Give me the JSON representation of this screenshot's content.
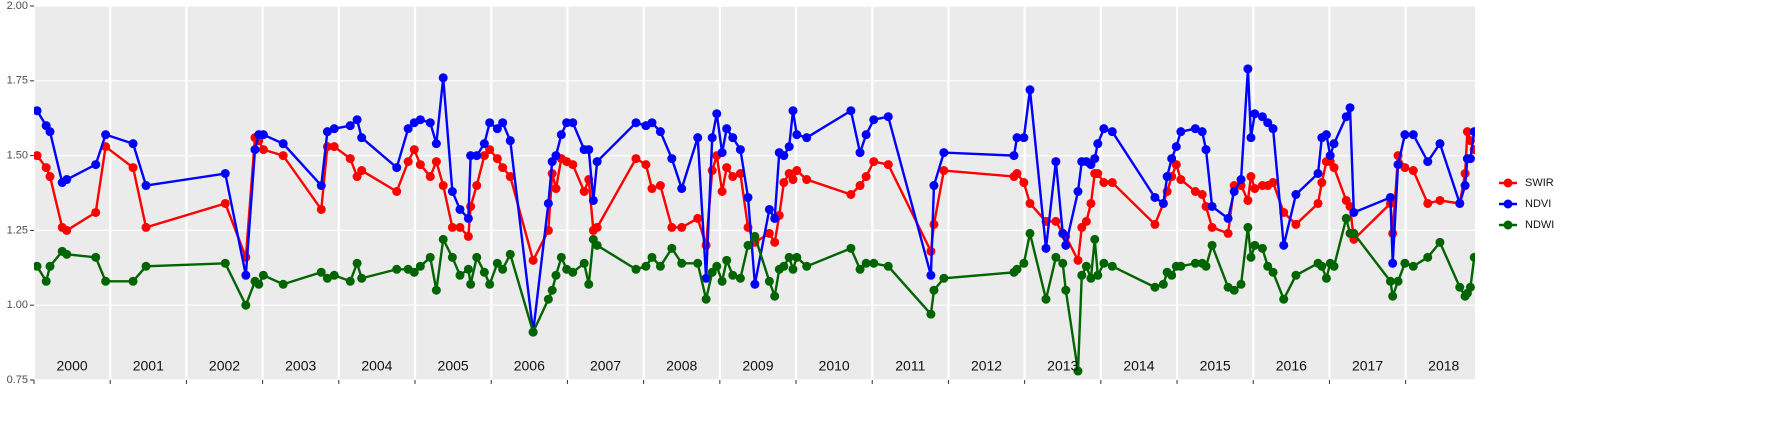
{
  "chart_data": {
    "type": "line",
    "x": [
      2000.04,
      2000.16,
      2000.21,
      2000.37,
      2000.43,
      2000.81,
      2000.94,
      2001.3,
      2001.47,
      2002.51,
      2002.78,
      2002.9,
      2002.95,
      2003.01,
      2003.27,
      2003.77,
      2003.85,
      2003.94,
      2004.15,
      2004.24,
      2004.3,
      2004.76,
      2004.91,
      2004.99,
      2005.07,
      2005.2,
      2005.28,
      2005.37,
      2005.49,
      2005.59,
      2005.7,
      2005.73,
      2005.81,
      2005.91,
      2005.98,
      2006.08,
      2006.15,
      2006.25,
      2006.55,
      2006.75,
      2006.8,
      2006.85,
      2006.92,
      2006.99,
      2007.07,
      2007.22,
      2007.28,
      2007.34,
      2007.39,
      2007.9,
      2008.03,
      2008.11,
      2008.22,
      2008.37,
      2008.5,
      2008.71,
      2008.82,
      2008.9,
      2008.96,
      2009.03,
      2009.09,
      2009.17,
      2009.27,
      2009.37,
      2009.46,
      2009.65,
      2009.72,
      2009.78,
      2009.84,
      2009.91,
      2009.96,
      2010.01,
      2010.14,
      2010.72,
      2010.84,
      2010.92,
      2011.02,
      2011.21,
      2011.77,
      2011.81,
      2011.94,
      2012.86,
      2012.9,
      2012.99,
      2013.07,
      2013.28,
      2013.41,
      2013.5,
      2013.54,
      2013.7,
      2013.75,
      2013.81,
      2013.87,
      2013.92,
      2013.96,
      2014.04,
      2014.15,
      2014.71,
      2014.82,
      2014.87,
      2014.93,
      2014.99,
      2015.05,
      2015.24,
      2015.33,
      2015.38,
      2015.46,
      2015.67,
      2015.75,
      2015.84,
      2015.93,
      2015.97,
      2016.02,
      2016.12,
      2016.19,
      2016.26,
      2016.4,
      2016.56,
      2016.85,
      2016.9,
      2016.96,
      2017.01,
      2017.06,
      2017.22,
      2017.27,
      2017.32,
      2017.8,
      2017.83,
      2017.9,
      2017.99,
      2018.1,
      2018.29,
      2018.45,
      2018.71,
      2018.78,
      2018.81,
      2018.85,
      2018.9
    ],
    "series": [
      {
        "name": "SWIR",
        "color": "#ff0000",
        "values": [
          1.5,
          1.46,
          1.43,
          1.26,
          1.25,
          1.31,
          1.53,
          1.46,
          1.26,
          1.34,
          1.16,
          1.56,
          1.55,
          1.52,
          1.5,
          1.32,
          1.53,
          1.53,
          1.49,
          1.43,
          1.45,
          1.38,
          1.48,
          1.52,
          1.47,
          1.43,
          1.48,
          1.4,
          1.26,
          1.26,
          1.23,
          1.33,
          1.4,
          1.5,
          1.52,
          1.49,
          1.46,
          1.43,
          1.15,
          1.25,
          1.44,
          1.39,
          1.49,
          1.48,
          1.47,
          1.38,
          1.42,
          1.25,
          1.26,
          1.49,
          1.47,
          1.39,
          1.4,
          1.26,
          1.26,
          1.29,
          1.2,
          1.45,
          1.5,
          1.38,
          1.46,
          1.43,
          1.44,
          1.26,
          1.21,
          1.24,
          1.21,
          1.3,
          1.41,
          1.44,
          1.42,
          1.45,
          1.42,
          1.37,
          1.4,
          1.43,
          1.48,
          1.47,
          1.18,
          1.27,
          1.45,
          1.43,
          1.44,
          1.41,
          1.34,
          1.28,
          1.28,
          1.24,
          1.23,
          1.15,
          1.26,
          1.28,
          1.34,
          1.44,
          1.44,
          1.41,
          1.41,
          1.27,
          1.34,
          1.38,
          1.43,
          1.47,
          1.42,
          1.38,
          1.37,
          1.33,
          1.26,
          1.24,
          1.4,
          1.4,
          1.35,
          1.43,
          1.39,
          1.4,
          1.4,
          1.41,
          1.31,
          1.27,
          1.34,
          1.41,
          1.48,
          1.48,
          1.46,
          1.35,
          1.33,
          1.22,
          1.34,
          1.24,
          1.5,
          1.46,
          1.45,
          1.34,
          1.35,
          1.34,
          1.44,
          1.58,
          1.55,
          1.52
        ]
      },
      {
        "name": "NDVI",
        "color": "#0000ff",
        "values": [
          1.65,
          1.6,
          1.58,
          1.41,
          1.42,
          1.47,
          1.57,
          1.54,
          1.4,
          1.44,
          1.1,
          1.52,
          1.57,
          1.57,
          1.54,
          1.4,
          1.58,
          1.59,
          1.6,
          1.62,
          1.56,
          1.46,
          1.59,
          1.61,
          1.62,
          1.61,
          1.54,
          1.76,
          1.38,
          1.32,
          1.29,
          1.5,
          1.5,
          1.54,
          1.61,
          1.59,
          1.61,
          1.55,
          0.91,
          1.34,
          1.48,
          1.5,
          1.57,
          1.61,
          1.61,
          1.52,
          1.52,
          1.35,
          1.48,
          1.61,
          1.6,
          1.61,
          1.58,
          1.49,
          1.39,
          1.56,
          1.09,
          1.56,
          1.64,
          1.51,
          1.59,
          1.56,
          1.52,
          1.36,
          1.07,
          1.32,
          1.29,
          1.51,
          1.5,
          1.53,
          1.65,
          1.57,
          1.56,
          1.65,
          1.51,
          1.57,
          1.62,
          1.63,
          1.1,
          1.4,
          1.51,
          1.5,
          1.56,
          1.56,
          1.72,
          1.19,
          1.48,
          1.24,
          1.2,
          1.38,
          1.48,
          1.48,
          1.47,
          1.49,
          1.54,
          1.59,
          1.58,
          1.36,
          1.34,
          1.43,
          1.49,
          1.53,
          1.58,
          1.59,
          1.58,
          1.52,
          1.33,
          1.29,
          1.38,
          1.42,
          1.79,
          1.56,
          1.64,
          1.63,
          1.61,
          1.59,
          1.2,
          1.37,
          1.44,
          1.56,
          1.57,
          1.5,
          1.54,
          1.63,
          1.66,
          1.31,
          1.36,
          1.14,
          1.47,
          1.57,
          1.57,
          1.48,
          1.54,
          1.34,
          1.4,
          1.49,
          1.49,
          1.58
        ]
      },
      {
        "name": "NDWI",
        "color": "#006400",
        "values": [
          1.13,
          1.08,
          1.13,
          1.18,
          1.17,
          1.16,
          1.08,
          1.08,
          1.13,
          1.14,
          1.0,
          1.08,
          1.07,
          1.1,
          1.07,
          1.11,
          1.09,
          1.1,
          1.08,
          1.14,
          1.09,
          1.12,
          1.12,
          1.11,
          1.13,
          1.16,
          1.05,
          1.22,
          1.16,
          1.1,
          1.12,
          1.07,
          1.16,
          1.11,
          1.07,
          1.14,
          1.12,
          1.17,
          0.91,
          1.02,
          1.05,
          1.1,
          1.16,
          1.12,
          1.11,
          1.14,
          1.07,
          1.22,
          1.2,
          1.12,
          1.13,
          1.16,
          1.13,
          1.19,
          1.14,
          1.14,
          1.02,
          1.11,
          1.13,
          1.08,
          1.15,
          1.1,
          1.09,
          1.2,
          1.23,
          1.08,
          1.03,
          1.12,
          1.13,
          1.16,
          1.12,
          1.16,
          1.13,
          1.19,
          1.12,
          1.14,
          1.14,
          1.13,
          0.97,
          1.05,
          1.09,
          1.11,
          1.12,
          1.14,
          1.24,
          1.02,
          1.16,
          1.14,
          1.05,
          0.78,
          1.1,
          1.13,
          1.09,
          1.22,
          1.1,
          1.14,
          1.13,
          1.06,
          1.07,
          1.11,
          1.1,
          1.13,
          1.13,
          1.14,
          1.14,
          1.13,
          1.2,
          1.06,
          1.05,
          1.07,
          1.26,
          1.16,
          1.2,
          1.19,
          1.13,
          1.11,
          1.02,
          1.1,
          1.14,
          1.13,
          1.09,
          1.14,
          1.13,
          1.29,
          1.24,
          1.24,
          1.08,
          1.03,
          1.08,
          1.14,
          1.13,
          1.16,
          1.21,
          1.06,
          1.03,
          1.04,
          1.06,
          1.16
        ]
      }
    ],
    "xlim": [
      2000.0,
      2018.91
    ],
    "xticks": [
      2000,
      2001,
      2002,
      2003,
      2004,
      2005,
      2006,
      2007,
      2008,
      2009,
      2010,
      2011,
      2012,
      2013,
      2014,
      2015,
      2016,
      2017,
      2018
    ],
    "ylim": [
      0.75,
      2.0
    ],
    "yticks": [
      {
        "value": 0.75,
        "label": "0.75"
      },
      {
        "value": 1.0,
        "label": "1.00"
      },
      {
        "value": 1.25,
        "label": "1.25"
      },
      {
        "value": 1.5,
        "label": "1.50"
      },
      {
        "value": 1.75,
        "label": "1.75"
      },
      {
        "value": 2.0,
        "label": "2.00"
      }
    ],
    "grid": true,
    "legend": "right"
  }
}
